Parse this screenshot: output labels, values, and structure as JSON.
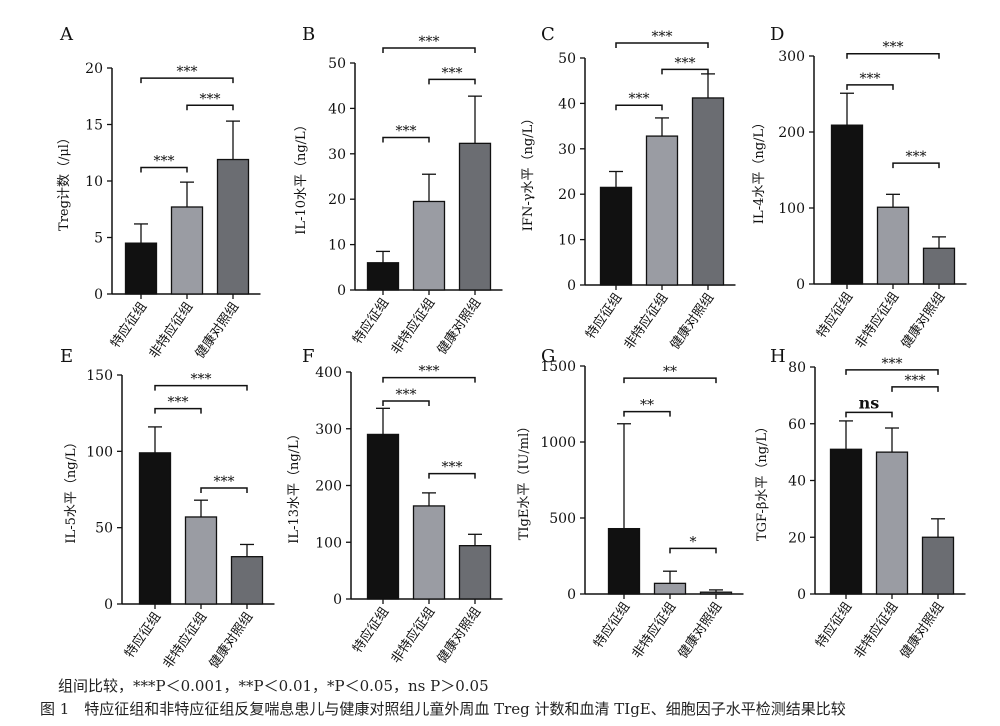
{
  "note": "组间比较，***P＜0.001，**P＜0.01，*P＜0.05，ns P＞0.05",
  "caption": "图 1　特应征组和非特应征组反复喘息患儿与健康对照组儿童外周血 Treg 计数和血清 TIgE、细胞因子水平检测结果比较",
  "colors": {
    "bar_1": "#111111",
    "bar_2": "#9a9ca3",
    "bar_3": "#6b6d72",
    "axis": "#111111"
  },
  "chart_data": [
    {
      "panel": "A",
      "type": "bar",
      "categories": [
        "特应征组",
        "非特应征组",
        "健康对照组"
      ],
      "values": [
        4.5,
        7.7,
        11.9
      ],
      "errors": [
        1.7,
        2.2,
        3.4
      ],
      "ylabel": "Treg计数（/μl）",
      "ylim": [
        0,
        20
      ],
      "yticks": [
        0,
        5,
        10,
        15,
        20
      ],
      "comparisons": [
        {
          "from": 0,
          "to": 1,
          "label": "***",
          "at": 11.2
        },
        {
          "from": 1,
          "to": 2,
          "label": "***",
          "at": 16.7
        },
        {
          "from": 0,
          "to": 2,
          "label": "***",
          "at": 19.1
        }
      ]
    },
    {
      "panel": "B",
      "type": "bar",
      "categories": [
        "特应征组",
        "非特应征组",
        "健康对照组"
      ],
      "values": [
        6,
        19.5,
        32.3
      ],
      "errors": [
        2.5,
        6,
        10.4
      ],
      "ylabel": "IL-10水平（ng/L）",
      "ylim": [
        0,
        50
      ],
      "yticks": [
        0,
        10,
        20,
        30,
        40,
        50
      ],
      "comparisons": [
        {
          "from": 0,
          "to": 1,
          "label": "***",
          "at": 33.6
        },
        {
          "from": 1,
          "to": 2,
          "label": "***",
          "at": 46.4
        },
        {
          "from": 0,
          "to": 2,
          "label": "***",
          "at": 53.3
        }
      ]
    },
    {
      "panel": "C",
      "type": "bar",
      "categories": [
        "特应征组",
        "非特应征组",
        "健康对照组"
      ],
      "values": [
        21.5,
        32.8,
        41.2
      ],
      "errors": [
        3.5,
        4,
        5.3
      ],
      "ylabel": "IFN-γ水平（ng/L）",
      "ylim": [
        0,
        50
      ],
      "yticks": [
        0,
        10,
        20,
        30,
        40,
        50
      ],
      "comparisons": [
        {
          "from": 0,
          "to": 1,
          "label": "***",
          "at": 39.6
        },
        {
          "from": 1,
          "to": 2,
          "label": "***",
          "at": 47.5
        },
        {
          "from": 0,
          "to": 2,
          "label": "***",
          "at": 53.3
        }
      ]
    },
    {
      "panel": "D",
      "type": "bar",
      "categories": [
        "特应征组",
        "非特应征组",
        "健康对照组"
      ],
      "values": [
        209,
        101,
        47
      ],
      "errors": [
        42,
        17,
        15
      ],
      "ylabel": "IL-4水平（ng/L）",
      "ylim": [
        0,
        300
      ],
      "yticks": [
        0,
        100,
        200,
        300
      ],
      "comparisons": [
        {
          "from": 0,
          "to": 1,
          "label": "***",
          "at": 262
        },
        {
          "from": 1,
          "to": 2,
          "label": "***",
          "at": 159
        },
        {
          "from": 0,
          "to": 2,
          "label": "***",
          "at": 303
        }
      ]
    },
    {
      "panel": "E",
      "type": "bar",
      "categories": [
        "特应征组",
        "非特应征组",
        "健康对照组"
      ],
      "values": [
        99,
        57,
        31
      ],
      "errors": [
        17,
        11,
        8
      ],
      "ylabel": "IL-5水平（ng/L）",
      "ylim": [
        0,
        150
      ],
      "yticks": [
        0,
        50,
        100,
        150
      ],
      "comparisons": [
        {
          "from": 0,
          "to": 1,
          "label": "***",
          "at": 128
        },
        {
          "from": 1,
          "to": 2,
          "label": "***",
          "at": 76
        },
        {
          "from": 0,
          "to": 2,
          "label": "***",
          "at": 143
        }
      ]
    },
    {
      "panel": "F",
      "type": "bar",
      "categories": [
        "特应征组",
        "非特应征组",
        "健康对照组"
      ],
      "values": [
        290,
        164,
        94
      ],
      "errors": [
        46,
        23,
        20
      ],
      "ylabel": "IL-13水平（ng/L）",
      "ylim": [
        0,
        400
      ],
      "yticks": [
        0,
        100,
        200,
        300,
        400
      ],
      "comparisons": [
        {
          "from": 0,
          "to": 1,
          "label": "***",
          "at": 349
        },
        {
          "from": 1,
          "to": 2,
          "label": "***",
          "at": 221
        },
        {
          "from": 0,
          "to": 2,
          "label": "***",
          "at": 390
        }
      ]
    },
    {
      "panel": "G",
      "type": "bar",
      "categories": [
        "特应征组",
        "非特应征组",
        "健康对照组"
      ],
      "values": [
        430,
        70,
        12
      ],
      "errors": [
        690,
        80,
        15
      ],
      "ylabel": "TIgE水平（IU/ml）",
      "ylim": [
        0,
        1500
      ],
      "yticks": [
        0,
        500,
        1000,
        1500
      ],
      "comparisons": [
        {
          "from": 0,
          "to": 1,
          "label": "**",
          "at": 1200
        },
        {
          "from": 1,
          "to": 2,
          "label": "*",
          "at": 300
        },
        {
          "from": 0,
          "to": 2,
          "label": "**",
          "at": 1420
        }
      ]
    },
    {
      "panel": "H",
      "type": "bar",
      "categories": [
        "特应征组",
        "非特应征组",
        "健康对照组"
      ],
      "values": [
        51,
        50,
        20
      ],
      "errors": [
        10,
        8.5,
        6.5
      ],
      "ylabel": "TGF-β水平（ng/L）",
      "ylim": [
        0,
        80
      ],
      "yticks": [
        0,
        20,
        40,
        60,
        80
      ],
      "comparisons": [
        {
          "from": 0,
          "to": 1,
          "label": "ns",
          "at": 64
        },
        {
          "from": 1,
          "to": 2,
          "label": "***",
          "at": 73
        },
        {
          "from": 0,
          "to": 2,
          "label": "***",
          "at": 79
        }
      ]
    }
  ]
}
